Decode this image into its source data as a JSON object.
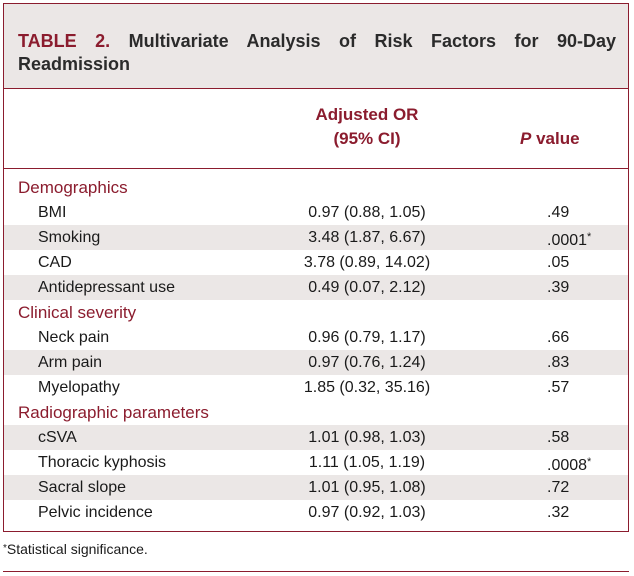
{
  "table": {
    "label": "TABLE 2.",
    "title": "Multivariate Analysis of Risk Factors for 90-Day Readmission",
    "headers": {
      "or_line1": "Adjusted OR",
      "or_line2": "(95% CI)",
      "p_italic": "P",
      "p_rest": " value"
    },
    "sections": [
      {
        "name": "Demographics",
        "rows": [
          {
            "label": "BMI",
            "or": "0.97 (0.88, 1.05)",
            "p": ".49",
            "mark": ""
          },
          {
            "label": "Smoking",
            "or": "3.48 (1.87, 6.67)",
            "p": ".0001",
            "mark": "*"
          },
          {
            "label": "CAD",
            "or": "3.78 (0.89, 14.02)",
            "p": ".05",
            "mark": ""
          },
          {
            "label": "Antidepressant use",
            "or": "0.49 (0.07, 2.12)",
            "p": ".39",
            "mark": ""
          }
        ]
      },
      {
        "name": "Clinical severity",
        "rows": [
          {
            "label": "Neck pain",
            "or": "0.96 (0.79, 1.17)",
            "p": ".66",
            "mark": ""
          },
          {
            "label": "Arm pain",
            "or": "0.97 (0.76, 1.24)",
            "p": ".83",
            "mark": ""
          },
          {
            "label": "Myelopathy",
            "or": "1.85 (0.32, 35.16)",
            "p": ".57",
            "mark": ""
          }
        ]
      },
      {
        "name": "Radiographic parameters",
        "rows": [
          {
            "label": "cSVA",
            "or": "1.01 (0.98, 1.03)",
            "p": ".58",
            "mark": ""
          },
          {
            "label": "Thoracic kyphosis",
            "or": "1.11 (1.05, 1.19)",
            "p": ".0008",
            "mark": "*"
          },
          {
            "label": "Sacral slope",
            "or": "1.01 (0.95, 1.08)",
            "p": ".72",
            "mark": ""
          },
          {
            "label": "Pelvic incidence",
            "or": "0.97 (0.92, 1.03)",
            "p": ".32",
            "mark": ""
          }
        ]
      }
    ]
  },
  "footnote": {
    "mark": "*",
    "text": "Statistical significance."
  },
  "colors": {
    "accent": "#8b1c2e",
    "shade": "#ebe7e6"
  }
}
